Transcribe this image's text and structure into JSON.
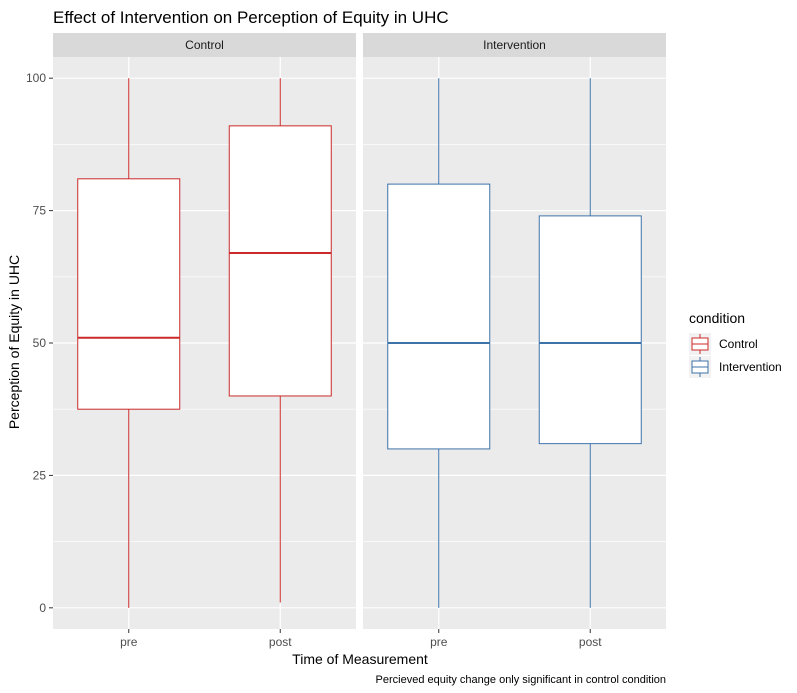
{
  "chart_data": {
    "type": "boxplot",
    "title": "Effect of Intervention on Perception of Equity in UHC",
    "xlabel": "Time of Measurement",
    "ylabel": "Perception of Equity in UHC",
    "caption": "Percieved equity change only significant in control condition",
    "ylim": [
      -4,
      104
    ],
    "yticks": [
      0,
      25,
      50,
      75,
      100
    ],
    "categories": [
      "pre",
      "post"
    ],
    "grid": true,
    "legend": {
      "title": "condition",
      "position": "right",
      "entries": [
        {
          "label": "Control",
          "color": "#cc2a2a"
        },
        {
          "label": "Intervention",
          "color": "#3e73aa"
        }
      ]
    },
    "facets": [
      {
        "name": "Control",
        "color": "#cc2a2a",
        "boxes": [
          {
            "x": "pre",
            "min": 0,
            "q1": 37.5,
            "median": 51,
            "q3": 81,
            "max": 100
          },
          {
            "x": "post",
            "min": 1,
            "q1": 40,
            "median": 67,
            "q3": 91,
            "max": 100
          }
        ]
      },
      {
        "name": "Intervention",
        "color": "#3e73aa",
        "boxes": [
          {
            "x": "pre",
            "min": 0,
            "q1": 30,
            "median": 50,
            "q3": 80,
            "max": 100
          },
          {
            "x": "post",
            "min": 0,
            "q1": 31,
            "median": 50,
            "q3": 74,
            "max": 100
          }
        ]
      }
    ]
  }
}
